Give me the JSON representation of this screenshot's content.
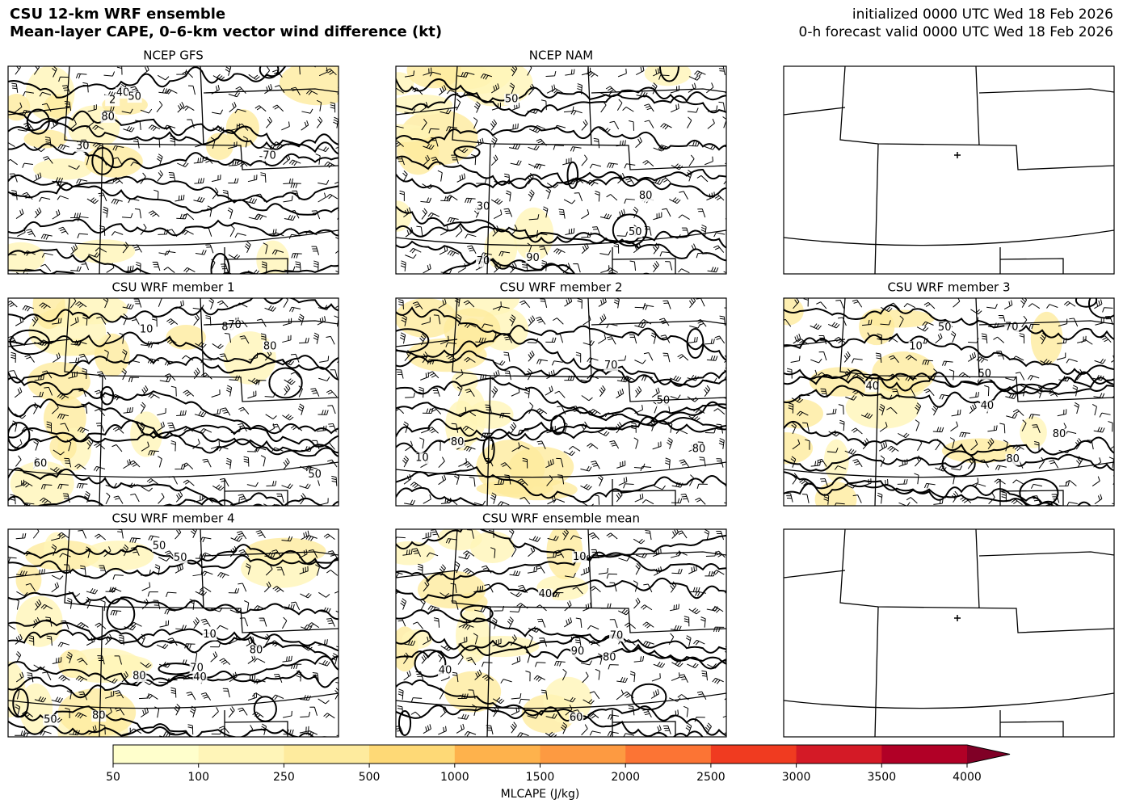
{
  "header": {
    "title_lines": [
      "CSU 12-km WRF ensemble",
      "Mean-layer CAPE, 0–6-km vector wind difference (kt)"
    ],
    "valid_lines": [
      "initialized 0000 UTC Wed 18 Feb 2026",
      "0-h forecast valid 0000 UTC Wed 18 Feb 2026"
    ]
  },
  "panels": [
    {
      "title": "NCEP GFS",
      "contour_labels": [
        "40",
        "50",
        "80",
        "70",
        "30",
        "2"
      ]
    },
    {
      "title": "NCEP NAM",
      "contour_labels": [
        "70",
        "30",
        "50",
        "80",
        "90",
        "50"
      ]
    },
    {
      "map_only": true
    },
    {
      "title": "CSU WRF member 1",
      "contour_labels": [
        "60",
        "50",
        "80",
        "70",
        "80",
        "10"
      ]
    },
    {
      "title": "CSU WRF member 2",
      "contour_labels": [
        "80",
        "50",
        "80",
        "70",
        "10"
      ]
    },
    {
      "title": "CSU WRF member 3",
      "contour_labels": [
        "80",
        "70",
        "50",
        "40",
        "40",
        "50",
        "10",
        "80"
      ]
    },
    {
      "title": "CSU WRF member 4",
      "contour_labels": [
        "80",
        "70",
        "50",
        "40",
        "50",
        "50",
        "80",
        "10",
        "80"
      ]
    },
    {
      "title": "CSU WRF ensemble mean",
      "contour_labels": [
        "70",
        "40",
        "90",
        "60",
        "80",
        "10",
        "40"
      ]
    },
    {
      "map_only": true
    }
  ],
  "colorbar": {
    "levels": [
      50,
      100,
      250,
      500,
      1000,
      1500,
      2000,
      2500,
      3000,
      3500,
      4000
    ],
    "colors": [
      "#ffffcc",
      "#fff5b8",
      "#feeb9e",
      "#fed976",
      "#feb24c",
      "#fd9a41",
      "#fc7434",
      "#f03b20",
      "#d41a26",
      "#b10026"
    ],
    "extend_color": "#800026",
    "label": "MLCAPE (J/kg)"
  }
}
